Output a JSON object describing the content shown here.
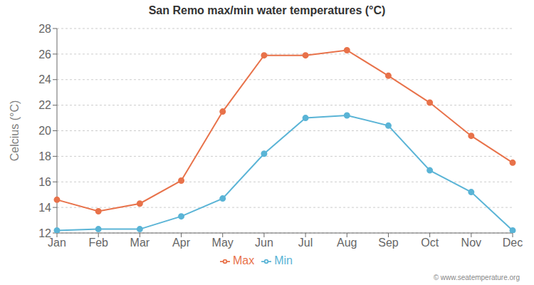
{
  "chart_data": {
    "type": "line",
    "title": "San Remo max/min water temperatures (°C)",
    "ylabel": "Celcius (°C)",
    "categories": [
      "Jan",
      "Feb",
      "Mar",
      "Apr",
      "May",
      "Jun",
      "Jul",
      "Aug",
      "Sep",
      "Oct",
      "Nov",
      "Dec"
    ],
    "series": [
      {
        "name": "Max",
        "color": "#e8724a",
        "marker": "circle",
        "values": [
          14.6,
          13.7,
          14.3,
          16.1,
          21.5,
          25.9,
          25.9,
          26.3,
          24.3,
          22.2,
          19.6,
          17.5
        ]
      },
      {
        "name": "Min",
        "color": "#5ab4d6",
        "marker": "circle",
        "values": [
          12.2,
          12.3,
          12.3,
          13.3,
          14.7,
          18.2,
          21.0,
          21.2,
          20.4,
          16.9,
          15.2,
          12.2
        ]
      }
    ],
    "ylim": [
      12,
      28
    ],
    "yticks": [
      12,
      14,
      16,
      18,
      20,
      22,
      24,
      26,
      28
    ],
    "grid": true,
    "legend": "bottom",
    "annotations": [
      "© www.seatemperature.org"
    ]
  }
}
